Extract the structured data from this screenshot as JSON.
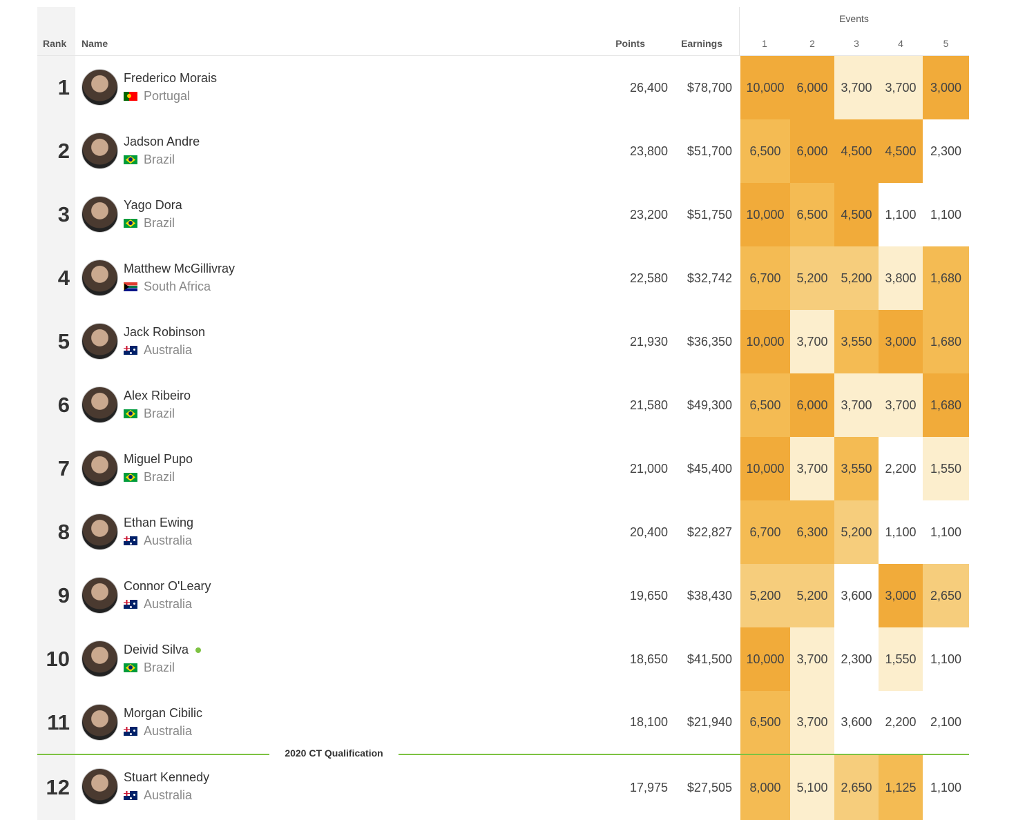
{
  "header": {
    "rank": "Rank",
    "name": "Name",
    "points": "Points",
    "earnings": "Earnings",
    "events": "Events",
    "event_numbers": [
      "1",
      "2",
      "3",
      "4",
      "5"
    ]
  },
  "colors": {
    "highest": "#f1ab3a",
    "high": "#f4bb53",
    "mid": "#f6cd7c",
    "low": "#fceecd",
    "none": "#ffffff",
    "qualification_line": "#7dc242"
  },
  "qualification_label": "2020 CT Qualification",
  "rows": [
    {
      "rank": "1",
      "name": "Frederico Morais",
      "country": "Portugal",
      "flag": "pt",
      "points": "26,400",
      "earnings": "$78,700",
      "events": [
        "10,000",
        "6,000",
        "3,700",
        "3,700",
        "3,000"
      ],
      "tiers": [
        "highest",
        "highest",
        "low",
        "low",
        "highest"
      ]
    },
    {
      "rank": "2",
      "name": "Jadson Andre",
      "country": "Brazil",
      "flag": "br",
      "points": "23,800",
      "earnings": "$51,700",
      "events": [
        "6,500",
        "6,000",
        "4,500",
        "4,500",
        "2,300"
      ],
      "tiers": [
        "high",
        "highest",
        "highest",
        "highest",
        "none"
      ]
    },
    {
      "rank": "3",
      "name": "Yago Dora",
      "country": "Brazil",
      "flag": "br",
      "points": "23,200",
      "earnings": "$51,750",
      "events": [
        "10,000",
        "6,500",
        "4,500",
        "1,100",
        "1,100"
      ],
      "tiers": [
        "highest",
        "high",
        "highest",
        "none",
        "none"
      ]
    },
    {
      "rank": "4",
      "name": "Matthew McGillivray",
      "country": "South Africa",
      "flag": "za",
      "points": "22,580",
      "earnings": "$32,742",
      "events": [
        "6,700",
        "5,200",
        "5,200",
        "3,800",
        "1,680"
      ],
      "tiers": [
        "high",
        "mid",
        "mid",
        "low",
        "high"
      ]
    },
    {
      "rank": "5",
      "name": "Jack Robinson",
      "country": "Australia",
      "flag": "au",
      "points": "21,930",
      "earnings": "$36,350",
      "events": [
        "10,000",
        "3,700",
        "3,550",
        "3,000",
        "1,680"
      ],
      "tiers": [
        "highest",
        "low",
        "high",
        "highest",
        "high"
      ]
    },
    {
      "rank": "6",
      "name": "Alex Ribeiro",
      "country": "Brazil",
      "flag": "br",
      "points": "21,580",
      "earnings": "$49,300",
      "events": [
        "6,500",
        "6,000",
        "3,700",
        "3,700",
        "1,680"
      ],
      "tiers": [
        "high",
        "highest",
        "low",
        "low",
        "highest"
      ]
    },
    {
      "rank": "7",
      "name": "Miguel Pupo",
      "country": "Brazil",
      "flag": "br",
      "points": "21,000",
      "earnings": "$45,400",
      "events": [
        "10,000",
        "3,700",
        "3,550",
        "2,200",
        "1,550"
      ],
      "tiers": [
        "highest",
        "low",
        "high",
        "none",
        "low"
      ]
    },
    {
      "rank": "8",
      "name": "Ethan Ewing",
      "country": "Australia",
      "flag": "au",
      "points": "20,400",
      "earnings": "$22,827",
      "events": [
        "6,700",
        "6,300",
        "5,200",
        "1,100",
        "1,100"
      ],
      "tiers": [
        "high",
        "high",
        "mid",
        "none",
        "none"
      ]
    },
    {
      "rank": "9",
      "name": "Connor O'Leary",
      "country": "Australia",
      "flag": "au",
      "points": "19,650",
      "earnings": "$38,430",
      "events": [
        "5,200",
        "5,200",
        "3,600",
        "3,000",
        "2,650"
      ],
      "tiers": [
        "mid",
        "mid",
        "none",
        "highest",
        "mid"
      ]
    },
    {
      "rank": "10",
      "name": "Deivid Silva",
      "country": "Brazil",
      "flag": "br",
      "points": "18,650",
      "earnings": "$41,500",
      "events": [
        "10,000",
        "3,700",
        "2,300",
        "1,550",
        "1,100"
      ],
      "tiers": [
        "highest",
        "low",
        "none",
        "low",
        "none"
      ],
      "status_dot": true
    },
    {
      "rank": "11",
      "name": "Morgan Cibilic",
      "country": "Australia",
      "flag": "au",
      "points": "18,100",
      "earnings": "$21,940",
      "events": [
        "6,500",
        "3,700",
        "3,600",
        "2,200",
        "2,100"
      ],
      "tiers": [
        "high",
        "low",
        "none",
        "none",
        "none"
      ]
    },
    {
      "rank": "12",
      "name": "Stuart Kennedy",
      "country": "Australia",
      "flag": "au",
      "points": "17,975",
      "earnings": "$27,505",
      "events": [
        "8,000",
        "5,100",
        "2,650",
        "1,125",
        "1,100"
      ],
      "tiers": [
        "high",
        "low",
        "mid",
        "high",
        "none"
      ]
    }
  ]
}
